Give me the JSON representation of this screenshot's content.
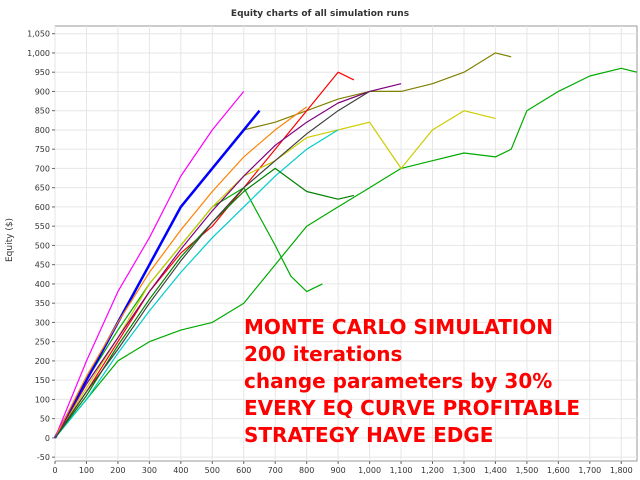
{
  "chart_data": {
    "type": "line",
    "title": "Equity charts of all simulation runs",
    "xlabel": "",
    "ylabel": "Equity ($)",
    "xlim": [
      0,
      1850
    ],
    "ylim": [
      -60,
      1070
    ],
    "x_ticks": [
      0,
      100,
      200,
      300,
      400,
      500,
      600,
      700,
      800,
      900,
      1000,
      1100,
      1200,
      1300,
      1400,
      1500,
      1600,
      1700,
      1800
    ],
    "x_tick_labels": [
      "0",
      "100",
      "200",
      "300",
      "400",
      "500",
      "600",
      "700",
      "800",
      "900",
      "1,000",
      "1,100",
      "1,200",
      "1,300",
      "1,400",
      "1,500",
      "1,600",
      "1,700",
      "1,800"
    ],
    "y_ticks": [
      -50,
      0,
      50,
      100,
      150,
      200,
      250,
      300,
      350,
      400,
      450,
      500,
      550,
      600,
      650,
      700,
      750,
      800,
      850,
      900,
      950,
      1000,
      1050
    ],
    "y_tick_labels": [
      "-50",
      "0",
      "50",
      "100",
      "150",
      "200",
      "250",
      "300",
      "350",
      "400",
      "450",
      "500",
      "550",
      "600",
      "650",
      "700",
      "750",
      "800",
      "850",
      "900",
      "950",
      "1,000",
      "1,050"
    ],
    "grid": true,
    "series": [
      {
        "color": "#00aa00",
        "x": [
          0,
          100,
          200,
          300,
          400,
          500,
          600,
          700,
          800,
          900,
          1000,
          1100,
          1200,
          1300,
          1400,
          1450,
          1500,
          1600,
          1700,
          1800,
          1850
        ],
        "y": [
          0,
          100,
          200,
          250,
          280,
          300,
          350,
          450,
          550,
          600,
          650,
          700,
          720,
          740,
          730,
          750,
          850,
          900,
          940,
          960,
          950
        ]
      },
      {
        "color": "#808000",
        "x": [
          0,
          100,
          200,
          300,
          400,
          500,
          600,
          700,
          800,
          900,
          1000,
          1100,
          1200,
          1300,
          1400,
          1450
        ],
        "y": [
          0,
          150,
          300,
          450,
          600,
          700,
          800,
          820,
          850,
          880,
          900,
          900,
          920,
          950,
          1000,
          990
        ]
      },
      {
        "color": "#00aa00",
        "x": [
          0,
          100,
          200,
          300,
          400,
          500,
          600,
          700,
          750,
          800,
          850
        ],
        "y": [
          0,
          150,
          280,
          400,
          500,
          600,
          650,
          500,
          420,
          380,
          400
        ]
      },
      {
        "color": "#0000ff",
        "x": [
          0,
          100,
          200,
          300,
          400,
          500,
          600,
          650
        ],
        "y": [
          0,
          150,
          300,
          450,
          600,
          700,
          800,
          850
        ]
      },
      {
        "color": "#ff0000",
        "x": [
          0,
          100,
          200,
          300,
          400,
          500,
          600,
          700,
          800,
          900,
          950
        ],
        "y": [
          0,
          120,
          250,
          380,
          480,
          550,
          650,
          750,
          850,
          950,
          930
        ]
      },
      {
        "color": "#cccc00",
        "x": [
          0,
          100,
          200,
          300,
          400,
          500,
          600,
          700,
          800,
          900,
          1000,
          1100,
          1200,
          1300,
          1400
        ],
        "y": [
          0,
          130,
          260,
          400,
          500,
          600,
          680,
          720,
          780,
          800,
          820,
          700,
          800,
          850,
          830
        ]
      },
      {
        "color": "#ff00ff",
        "x": [
          0,
          100,
          200,
          300,
          400,
          500,
          600
        ],
        "y": [
          0,
          200,
          380,
          520,
          680,
          800,
          900
        ]
      },
      {
        "color": "#00cccc",
        "x": [
          0,
          100,
          200,
          300,
          400,
          500,
          600,
          700,
          800,
          900
        ],
        "y": [
          0,
          100,
          220,
          330,
          430,
          520,
          600,
          680,
          750,
          800
        ]
      },
      {
        "color": "#008000",
        "x": [
          0,
          100,
          200,
          300,
          400,
          500,
          600,
          700,
          800,
          900,
          950
        ],
        "y": [
          0,
          110,
          240,
          360,
          470,
          560,
          640,
          700,
          640,
          620,
          630
        ]
      },
      {
        "color": "#800080",
        "x": [
          0,
          100,
          200,
          300,
          400,
          500,
          600,
          700,
          800,
          900,
          1000,
          1100
        ],
        "y": [
          0,
          140,
          260,
          380,
          490,
          590,
          680,
          760,
          820,
          870,
          900,
          920
        ]
      },
      {
        "color": "#ff8000",
        "x": [
          0,
          100,
          200,
          300,
          400,
          500,
          600,
          700,
          800
        ],
        "y": [
          0,
          160,
          300,
          430,
          540,
          640,
          730,
          800,
          860
        ]
      },
      {
        "color": "#404040",
        "x": [
          0,
          100,
          200,
          300,
          400,
          500,
          600,
          700,
          800,
          900,
          1000
        ],
        "y": [
          0,
          120,
          230,
          350,
          460,
          560,
          650,
          720,
          790,
          850,
          900
        ]
      }
    ]
  },
  "overlay": {
    "line1": "MONTE CARLO SIMULATION",
    "line2": "200 iterations",
    "line3": "change parameters by 30%",
    "line4": "EVERY EQ CURVE PROFITABLE",
    "line5": "STRATEGY HAVE EDGE"
  }
}
